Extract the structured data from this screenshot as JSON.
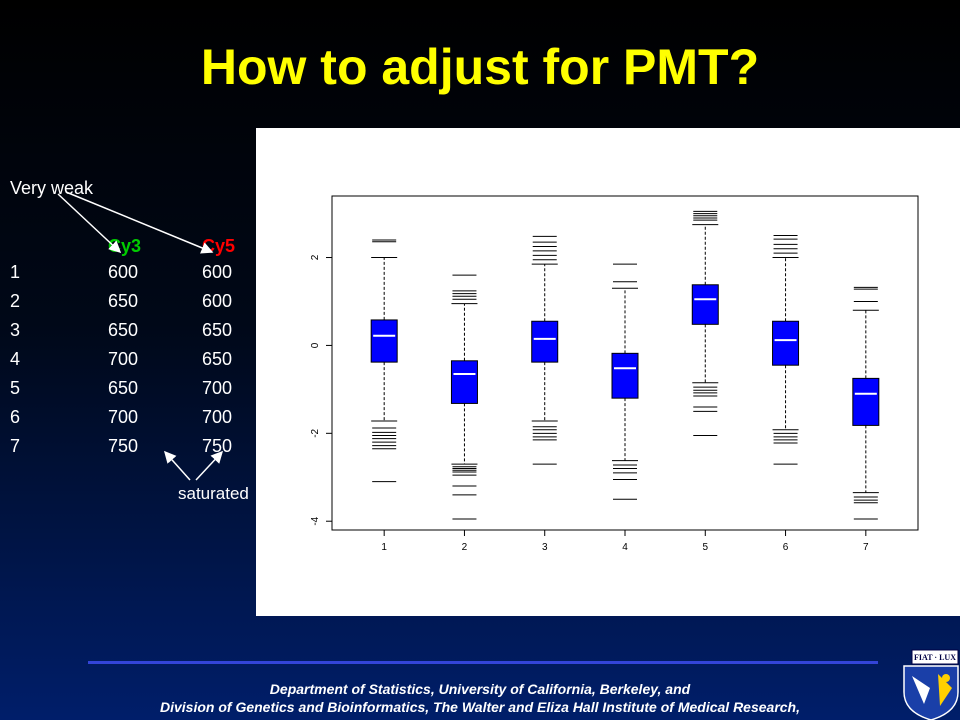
{
  "slide": {
    "title": "How to adjust for PMT?",
    "annotation_weak": "Very weak",
    "annotation_saturated": "saturated",
    "table": {
      "col_cy3": "Cy3",
      "col_cy5": "Cy5",
      "rows": [
        {
          "id": "1",
          "cy3": "600",
          "cy5": "600"
        },
        {
          "id": "2",
          "cy3": "650",
          "cy5": "600"
        },
        {
          "id": "3",
          "cy3": "650",
          "cy5": "650"
        },
        {
          "id": "4",
          "cy3": "700",
          "cy5": "650"
        },
        {
          "id": "5",
          "cy3": "650",
          "cy5": "700"
        },
        {
          "id": "6",
          "cy3": "700",
          "cy5": "700"
        },
        {
          "id": "7",
          "cy3": "750",
          "cy5": "750"
        }
      ]
    },
    "footer_line1": "Department of Statistics, University of California, Berkeley,  and",
    "footer_line2": "Division of Genetics and Bioinformatics, The Walter and Eliza Hall Institute of Medical Research,",
    "crest_text": "FIAT · LUX"
  },
  "colors": {
    "title": "#ffff00",
    "cy3": "#00cc00",
    "cy5": "#ff0000",
    "box_fill": "#0000ff",
    "footer_rule": "#3344d8"
  },
  "chart_data": {
    "type": "boxplot",
    "categories": [
      "1",
      "2",
      "3",
      "4",
      "5",
      "6",
      "7"
    ],
    "ylim": [
      -4.2,
      3.4
    ],
    "yticks": [
      -4,
      -2,
      0,
      2
    ],
    "ytick_labels": [
      "-4",
      "-2",
      "0",
      "2"
    ],
    "boxes": [
      {
        "q1": -0.38,
        "median": 0.22,
        "q3": 0.58,
        "whisker_low": -1.72,
        "whisker_high": 2.0,
        "outliers": [
          -1.88,
          -1.98,
          -2.05,
          -2.12,
          -2.2,
          -2.28,
          -2.35,
          -3.1,
          2.36,
          2.4
        ]
      },
      {
        "q1": -1.32,
        "median": -0.65,
        "q3": -0.35,
        "whisker_low": -2.7,
        "whisker_high": 0.95,
        "outliers": [
          -2.76,
          -2.8,
          -2.84,
          -2.88,
          -2.95,
          -3.2,
          -3.4,
          -3.95,
          1.05,
          1.12,
          1.18,
          1.24,
          1.6
        ]
      },
      {
        "q1": -0.38,
        "median": 0.15,
        "q3": 0.55,
        "whisker_low": -1.72,
        "whisker_high": 1.85,
        "outliers": [
          -1.85,
          -1.92,
          -2.0,
          -2.08,
          -2.15,
          -2.7,
          1.95,
          2.05,
          2.15,
          2.25,
          2.35,
          2.48
        ]
      },
      {
        "q1": -1.2,
        "median": -0.52,
        "q3": -0.18,
        "whisker_low": -2.62,
        "whisker_high": 1.3,
        "outliers": [
          -2.72,
          -2.8,
          -2.9,
          -3.05,
          -3.5,
          1.45,
          1.85
        ]
      },
      {
        "q1": 0.48,
        "median": 1.05,
        "q3": 1.38,
        "whisker_low": -0.85,
        "whisker_high": 2.75,
        "outliers": [
          -0.95,
          -1.02,
          -1.08,
          -1.15,
          -1.4,
          -1.5,
          -2.05,
          2.85,
          2.9,
          2.95,
          3.0,
          3.05
        ]
      },
      {
        "q1": -0.45,
        "median": 0.12,
        "q3": 0.55,
        "whisker_low": -1.92,
        "whisker_high": 2.0,
        "outliers": [
          -2.0,
          -2.08,
          -2.15,
          -2.22,
          -2.7,
          2.1,
          2.2,
          2.3,
          2.42,
          2.5
        ]
      },
      {
        "q1": -1.82,
        "median": -1.1,
        "q3": -0.75,
        "whisker_low": -3.35,
        "whisker_high": 0.8,
        "outliers": [
          -3.45,
          -3.52,
          -3.58,
          -3.95,
          1.0,
          1.28,
          1.32
        ]
      }
    ],
    "grid": false,
    "legend": "none"
  }
}
